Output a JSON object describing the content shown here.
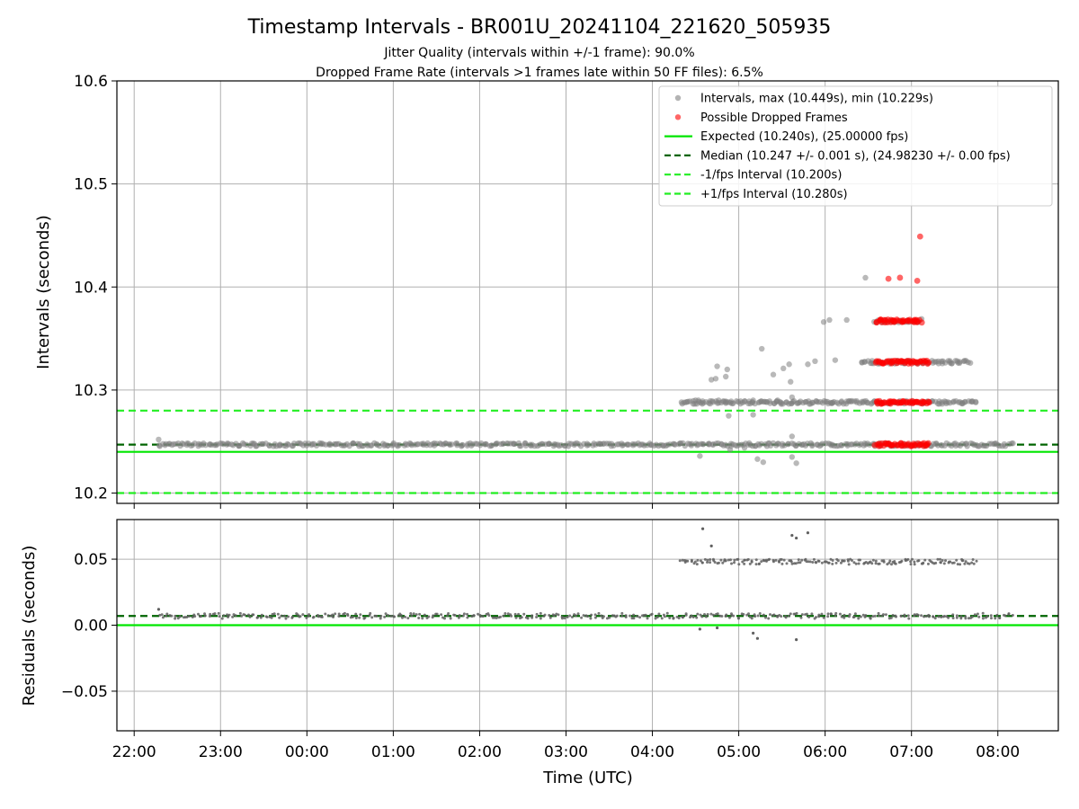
{
  "chart_data": [
    {
      "type": "scatter",
      "title": "Timestamp Intervals - BR001U_20241104_221620_505935",
      "subtitle_lines": [
        "Jitter Quality (intervals within +/-1 frame): 90.0%",
        "Dropped Frame Rate (intervals >1 frames late within 50 FF files): 6.5%"
      ],
      "xlabel": "Time (UTC)",
      "ylabel": "Intervals (seconds)",
      "ylim": [
        10.19,
        10.6
      ],
      "xlim": [
        "21:48",
        "08:42"
      ],
      "yticks": [
        "10.2",
        "10.3",
        "10.4",
        "10.5",
        "10.6"
      ],
      "xticks": [
        "22:00",
        "23:00",
        "00:00",
        "01:00",
        "02:00",
        "03:00",
        "04:00",
        "05:00",
        "06:00",
        "07:00",
        "08:00"
      ],
      "grid": true,
      "legend_position": "top-right",
      "legend": [
        "Intervals, max (10.449s), min (10.229s)",
        "Possible Dropped Frames",
        "Expected (10.240s), (25.00000 fps)",
        "Median (10.247 +/- 0.001 s), (24.98230 +/- 0.00 fps)",
        "-1/fps Interval (10.200s)",
        "+1/fps Interval (10.280s)"
      ],
      "reference_lines": {
        "expected": 10.24,
        "median": 10.247,
        "minus_one_frame": 10.2,
        "plus_one_frame": 10.28
      },
      "series": [
        {
          "name": "Intervals, max (10.449s), min (10.229s)",
          "clusters": [
            {
              "x_start": "22:17",
              "x_end": "08:10",
              "y": 10.247
            },
            {
              "x_start": "04:20",
              "x_end": "07:45",
              "y": 10.288
            },
            {
              "x_start": "06:25",
              "x_end": "07:40",
              "y": 10.327
            },
            {
              "x_start": "06:35",
              "x_end": "07:05",
              "y": 10.367
            }
          ],
          "points": [
            [
              "22:17",
              10.252
            ],
            [
              "04:30",
              10.29
            ],
            [
              "04:32",
              10.29
            ],
            [
              "04:33",
              10.236
            ],
            [
              "04:41",
              10.31
            ],
            [
              "04:44",
              10.311
            ],
            [
              "04:45",
              10.323
            ],
            [
              "04:51",
              10.313
            ],
            [
              "04:52",
              10.32
            ],
            [
              "04:51",
              10.289
            ],
            [
              "04:46",
              10.29
            ],
            [
              "04:54",
              10.242
            ],
            [
              "04:53",
              10.275
            ],
            [
              "05:04",
              10.244
            ],
            [
              "05:10",
              10.29
            ],
            [
              "05:10",
              10.276
            ],
            [
              "05:13",
              10.233
            ],
            [
              "05:16",
              10.34
            ],
            [
              "05:17",
              10.23
            ],
            [
              "05:24",
              10.315
            ],
            [
              "05:27",
              10.29
            ],
            [
              "05:31",
              10.321
            ],
            [
              "05:35",
              10.325
            ],
            [
              "05:36",
              10.308
            ],
            [
              "05:37",
              10.293
            ],
            [
              "05:37",
              10.255
            ],
            [
              "05:37",
              10.235
            ],
            [
              "05:40",
              10.229
            ],
            [
              "05:48",
              10.325
            ],
            [
              "05:53",
              10.328
            ],
            [
              "05:59",
              10.366
            ],
            [
              "06:03",
              10.368
            ],
            [
              "06:07",
              10.329
            ],
            [
              "06:15",
              10.368
            ],
            [
              "06:28",
              10.409
            ],
            [
              "07:07",
              10.369
            ]
          ]
        },
        {
          "name": "Possible Dropped Frames",
          "clusters": [
            {
              "x_start": "06:35",
              "x_end": "07:12",
              "y": 10.247
            },
            {
              "x_start": "06:35",
              "x_end": "07:12",
              "y": 10.288
            },
            {
              "x_start": "06:35",
              "x_end": "07:12",
              "y": 10.327
            },
            {
              "x_start": "06:35",
              "x_end": "07:07",
              "y": 10.367
            }
          ],
          "points": [
            [
              "06:44",
              10.408
            ],
            [
              "06:52",
              10.409
            ],
            [
              "07:04",
              10.406
            ],
            [
              "07:06",
              10.449
            ]
          ]
        }
      ]
    },
    {
      "type": "scatter",
      "xlabel": "Time (UTC)",
      "ylabel": "Residuals (seconds)",
      "ylim": [
        -0.08,
        0.08
      ],
      "xlim": [
        "21:48",
        "08:42"
      ],
      "yticks": [
        "−0.05",
        "0.00",
        "0.05"
      ],
      "grid": true,
      "reference_lines": {
        "zero": 0.0,
        "median": 0.007
      },
      "series": [
        {
          "clusters": [
            {
              "x_start": "22:17",
              "x_end": "08:10",
              "y": 0.007
            },
            {
              "x_start": "04:20",
              "x_end": "07:45",
              "y": 0.048
            }
          ],
          "points": [
            [
              "22:17",
              0.012
            ],
            [
              "04:33",
              -0.003
            ],
            [
              "04:35",
              0.073
            ],
            [
              "04:41",
              0.06
            ],
            [
              "04:45",
              -0.002
            ],
            [
              "05:10",
              -0.006
            ],
            [
              "05:13",
              -0.01
            ],
            [
              "05:37",
              0.068
            ],
            [
              "05:40",
              0.066
            ],
            [
              "05:40",
              -0.011
            ],
            [
              "05:48",
              0.07
            ]
          ]
        }
      ]
    }
  ]
}
